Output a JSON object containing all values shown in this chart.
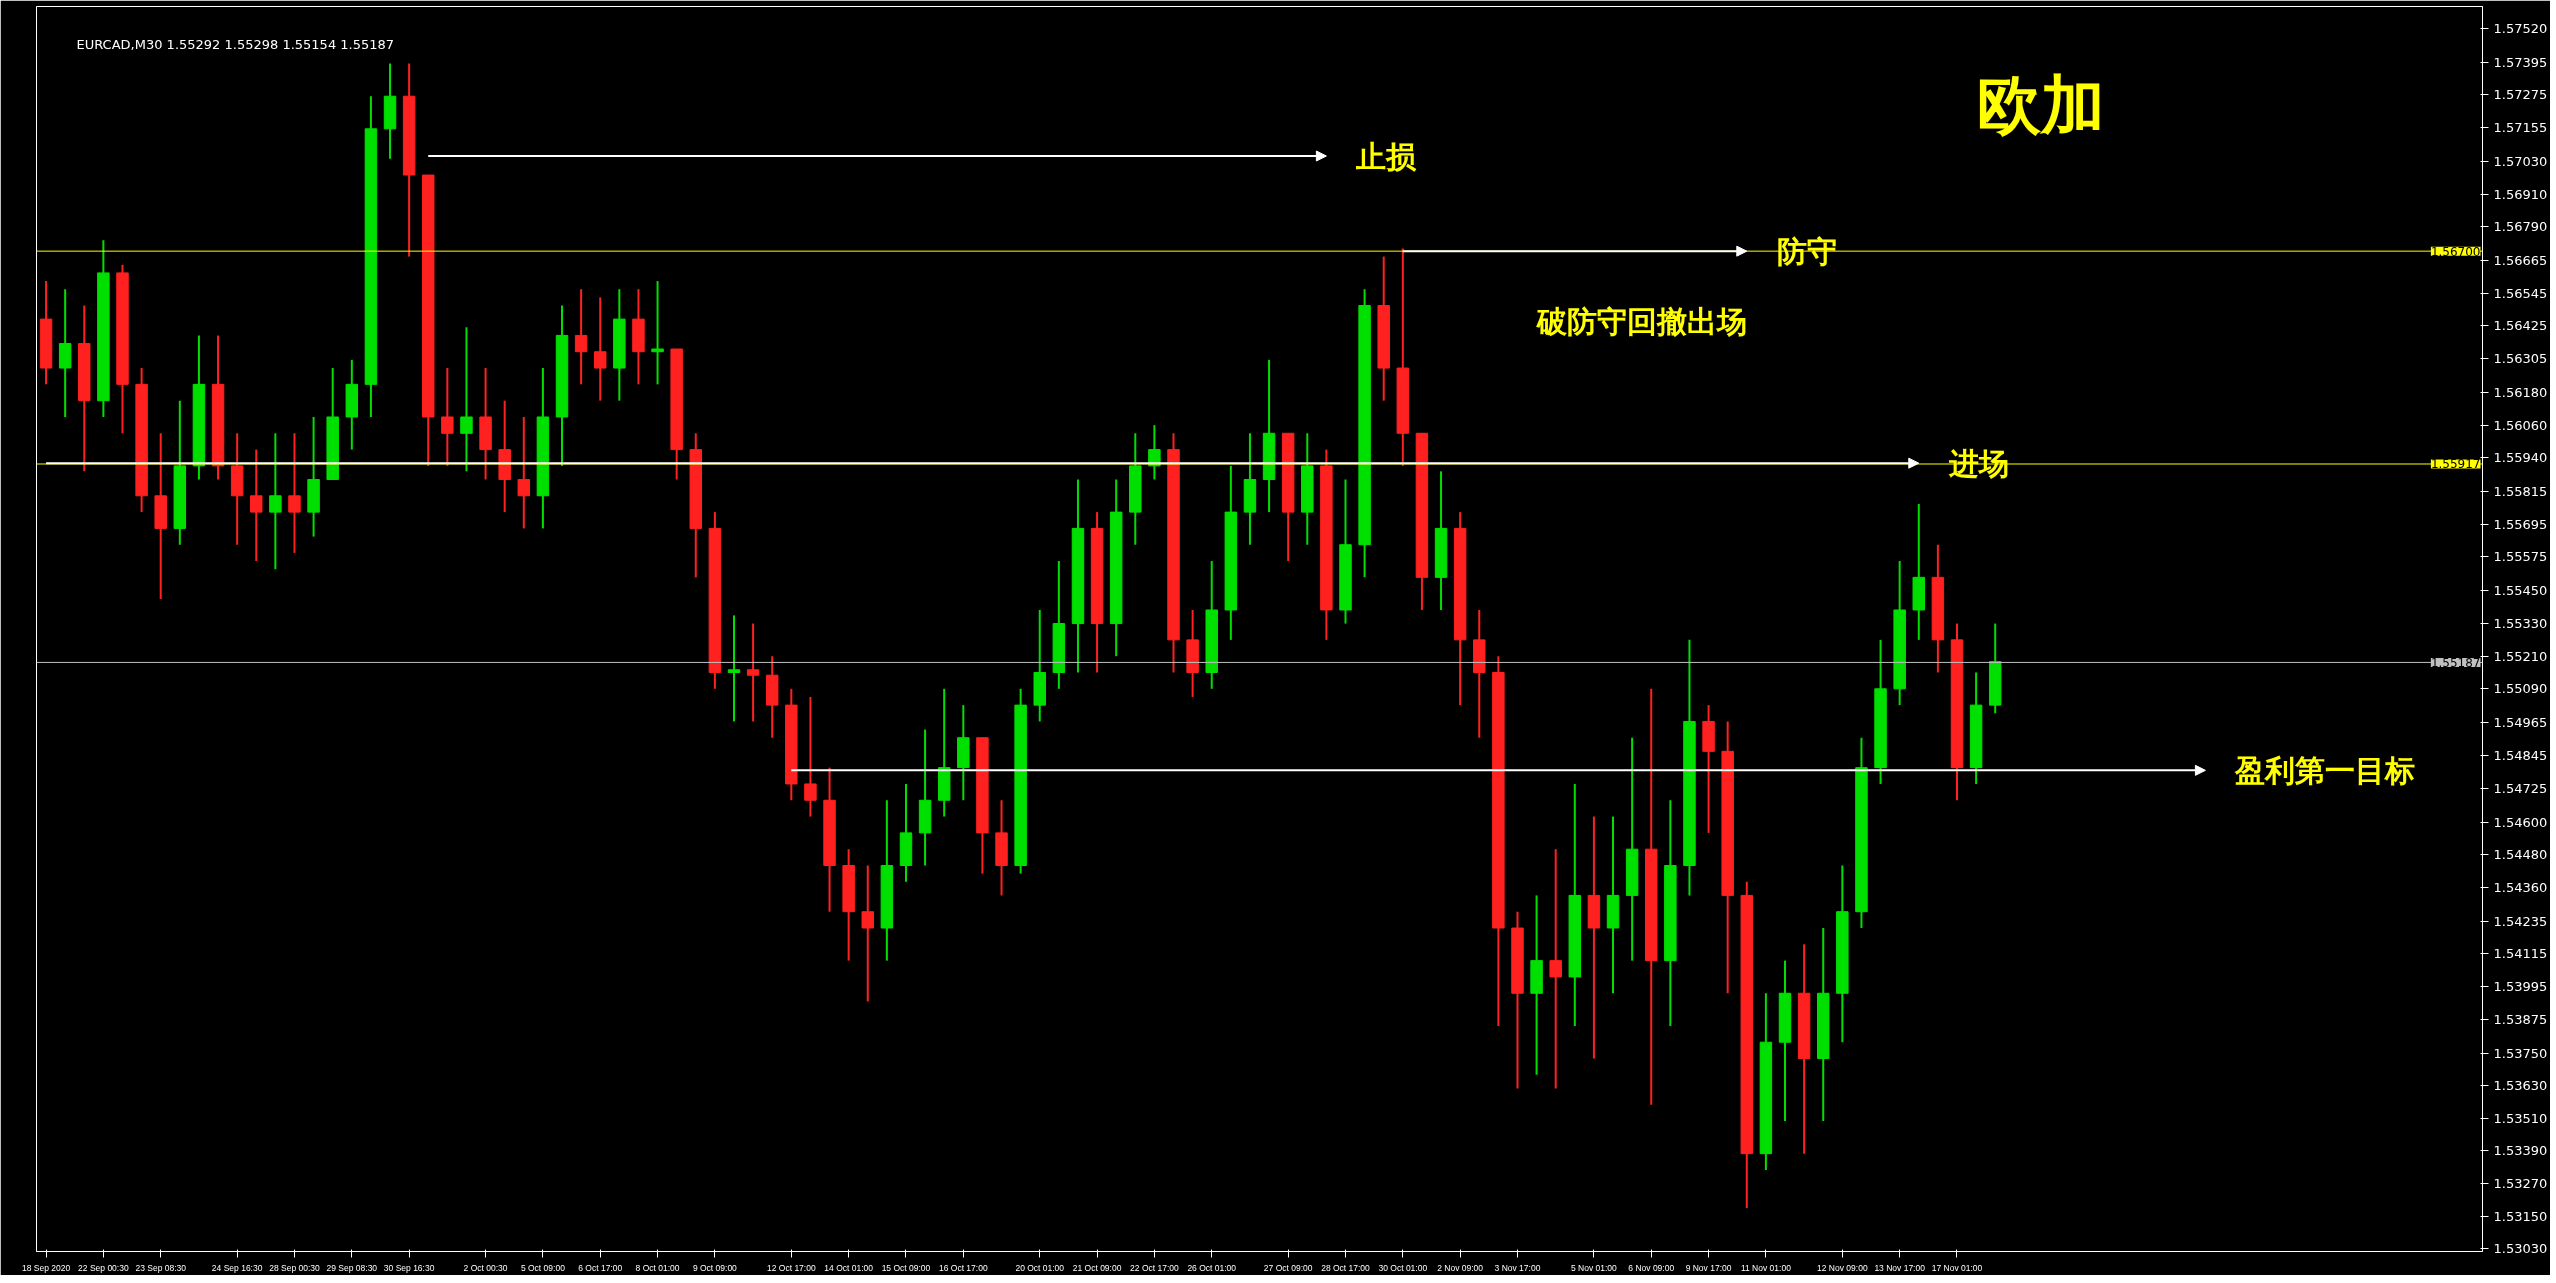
{
  "chart_data": {
    "type": "candlestick",
    "title": "欧加",
    "subtitle": "EURCAD,M30  1.55292 1.55298 1.55154 1.55187",
    "categories": [
      "18 Sep 2020",
      null,
      null,
      "22 Sep 00:30",
      null,
      null,
      "23 Sep 08:30",
      null,
      null,
      null,
      "24 Sep 16:30",
      null,
      null,
      "28 Sep 00:30",
      null,
      null,
      "29 Sep 08:30",
      null,
      null,
      "30 Sep 16:30",
      null,
      null,
      null,
      "2 Oct 00:30",
      null,
      null,
      "5 Oct 09:00",
      null,
      null,
      "6 Oct 17:00",
      null,
      null,
      "8 Oct 01:00",
      null,
      null,
      "9 Oct 09:00",
      null,
      null,
      null,
      "12 Oct 17:00",
      null,
      null,
      "14 Oct 01:00",
      null,
      null,
      "15 Oct 09:00",
      null,
      null,
      "16 Oct 17:00",
      null,
      null,
      null,
      "20 Oct 01:00",
      null,
      null,
      "21 Oct 09:00",
      null,
      null,
      "22 Oct 17:00",
      null,
      null,
      "26 Oct 01:00",
      null,
      null,
      null,
      "27 Oct 09:00",
      null,
      null,
      "28 Oct 17:00",
      null,
      null,
      "30 Oct 01:00",
      null,
      null,
      "2 Nov 09:00",
      null,
      null,
      "3 Nov 17:00",
      null,
      null,
      null,
      "5 Nov 01:00",
      null,
      null,
      "6 Nov 09:00",
      null,
      null,
      "9 Nov 17:00",
      null,
      null,
      "11 Nov 01:00",
      null,
      null,
      null,
      "12 Nov 09:00",
      null,
      null,
      "13 Nov 17:00",
      null,
      null,
      "17 Nov 01:00",
      null,
      null,
      null,
      null,
      null,
      null,
      null,
      null,
      null,
      null,
      null,
      null,
      null,
      null,
      null,
      null,
      null,
      null,
      null,
      null,
      null,
      null,
      null,
      null,
      null,
      null,
      null
    ],
    "ohlc": [
      [
        1.5645,
        1.5659,
        1.5621,
        1.5627
      ],
      [
        1.5627,
        1.5656,
        1.5609,
        1.5636
      ],
      [
        1.5636,
        1.565,
        1.5589,
        1.5615
      ],
      [
        1.5615,
        1.5674,
        1.5609,
        1.5662
      ],
      [
        1.5662,
        1.5665,
        1.5603,
        1.5621
      ],
      [
        1.5621,
        1.5627,
        1.5574,
        1.558
      ],
      [
        1.558,
        1.5603,
        1.5542,
        1.5568
      ],
      [
        1.5568,
        1.5615,
        1.5562,
        1.5591
      ],
      [
        1.5591,
        1.5639,
        1.5586,
        1.5621
      ],
      [
        1.5621,
        1.5639,
        1.5586,
        1.5591
      ],
      [
        1.5591,
        1.5603,
        1.5562,
        1.558
      ],
      [
        1.558,
        1.5597,
        1.5556,
        1.5574
      ],
      [
        1.5574,
        1.5603,
        1.5553,
        1.558
      ],
      [
        1.558,
        1.5603,
        1.5559,
        1.5574
      ],
      [
        1.5574,
        1.5609,
        1.5565,
        1.5586
      ],
      [
        1.5586,
        1.5627,
        1.5586,
        1.5609
      ],
      [
        1.5609,
        1.563,
        1.5597,
        1.5621
      ],
      [
        1.5621,
        1.5727,
        1.5609,
        1.5715
      ],
      [
        1.5715,
        1.5739,
        1.5704,
        1.5727
      ],
      [
        1.5727,
        1.5739,
        1.5668,
        1.5698
      ],
      [
        1.5698,
        1.5698,
        1.5591,
        1.5609
      ],
      [
        1.5609,
        1.5627,
        1.5591,
        1.5603
      ],
      [
        1.5603,
        1.5642,
        1.5589,
        1.5609
      ],
      [
        1.5609,
        1.5627,
        1.5586,
        1.5597
      ],
      [
        1.5597,
        1.5615,
        1.5574,
        1.5586
      ],
      [
        1.5586,
        1.5609,
        1.5568,
        1.558
      ],
      [
        1.558,
        1.5627,
        1.5568,
        1.5609
      ],
      [
        1.5609,
        1.565,
        1.5591,
        1.5639
      ],
      [
        1.5639,
        1.5656,
        1.5621,
        1.5633
      ],
      [
        1.5633,
        1.5653,
        1.5615,
        1.5627
      ],
      [
        1.5627,
        1.5656,
        1.5615,
        1.5645
      ],
      [
        1.5645,
        1.5656,
        1.5621,
        1.5633
      ],
      [
        1.5633,
        1.5659,
        1.5621,
        1.5634
      ],
      [
        1.5634,
        1.5634,
        1.5586,
        1.5597
      ],
      [
        1.5597,
        1.5603,
        1.555,
        1.5568
      ],
      [
        1.5568,
        1.5574,
        1.5509,
        1.5515
      ],
      [
        1.5515,
        1.5536,
        1.5497,
        1.5516
      ],
      [
        1.5516,
        1.5533,
        1.5497,
        1.5514
      ],
      [
        1.5514,
        1.5521,
        1.5491,
        1.5503
      ],
      [
        1.5503,
        1.5509,
        1.5468,
        1.5474
      ],
      [
        1.5474,
        1.5506,
        1.5462,
        1.5468
      ],
      [
        1.5468,
        1.548,
        1.5427,
        1.5444
      ],
      [
        1.5444,
        1.545,
        1.5409,
        1.5427
      ],
      [
        1.5427,
        1.5444,
        1.5394,
        1.5421
      ],
      [
        1.5421,
        1.5468,
        1.5409,
        1.5444
      ],
      [
        1.5444,
        1.5474,
        1.5438,
        1.5456
      ],
      [
        1.5456,
        1.5494,
        1.5444,
        1.5468
      ],
      [
        1.5468,
        1.5509,
        1.5462,
        1.548
      ],
      [
        1.548,
        1.5503,
        1.5468,
        1.5491
      ],
      [
        1.5491,
        1.5491,
        1.5441,
        1.5456
      ],
      [
        1.5456,
        1.5468,
        1.5433,
        1.5444
      ],
      [
        1.5444,
        1.5509,
        1.5441,
        1.5503
      ],
      [
        1.5503,
        1.5538,
        1.5497,
        1.5515
      ],
      [
        1.5515,
        1.5556,
        1.5509,
        1.5533
      ],
      [
        1.5533,
        1.5586,
        1.5515,
        1.5568
      ],
      [
        1.5568,
        1.5574,
        1.5515,
        1.5533
      ],
      [
        1.5533,
        1.5586,
        1.5521,
        1.5574
      ],
      [
        1.5574,
        1.5603,
        1.5562,
        1.5591
      ],
      [
        1.5591,
        1.5606,
        1.5586,
        1.5597
      ],
      [
        1.5597,
        1.5603,
        1.5515,
        1.5527
      ],
      [
        1.5527,
        1.5538,
        1.5506,
        1.5515
      ],
      [
        1.5515,
        1.5556,
        1.5509,
        1.5538
      ],
      [
        1.5538,
        1.5591,
        1.5527,
        1.5574
      ],
      [
        1.5574,
        1.5603,
        1.5562,
        1.5586
      ],
      [
        1.5586,
        1.563,
        1.5574,
        1.5603
      ],
      [
        1.5603,
        1.5603,
        1.5556,
        1.5574
      ],
      [
        1.5574,
        1.5603,
        1.5562,
        1.5591
      ],
      [
        1.5591,
        1.5597,
        1.5527,
        1.5538
      ],
      [
        1.5538,
        1.5586,
        1.5533,
        1.5562
      ],
      [
        1.5562,
        1.5656,
        1.555,
        1.565
      ],
      [
        1.565,
        1.5668,
        1.5615,
        1.5627
      ],
      [
        1.5627,
        1.5671,
        1.5591,
        1.5603
      ],
      [
        1.5603,
        1.5603,
        1.5538,
        1.555
      ],
      [
        1.555,
        1.5589,
        1.5538,
        1.5568
      ],
      [
        1.5568,
        1.5574,
        1.5503,
        1.5527
      ],
      [
        1.5527,
        1.5538,
        1.5491,
        1.5515
      ],
      [
        1.5515,
        1.5521,
        1.5385,
        1.5421
      ],
      [
        1.5421,
        1.5427,
        1.5362,
        1.5397
      ],
      [
        1.5397,
        1.5433,
        1.5367,
        1.5409
      ],
      [
        1.5409,
        1.545,
        1.5362,
        1.5403
      ],
      [
        1.5403,
        1.5474,
        1.5385,
        1.5433
      ],
      [
        1.5433,
        1.5462,
        1.5373,
        1.5421
      ],
      [
        1.5421,
        1.5462,
        1.5397,
        1.5433
      ],
      [
        1.5433,
        1.5491,
        1.5409,
        1.545
      ],
      [
        1.545,
        1.5509,
        1.5356,
        1.5409
      ],
      [
        1.5409,
        1.5468,
        1.5385,
        1.5444
      ],
      [
        1.5444,
        1.5527,
        1.5433,
        1.5497
      ],
      [
        1.5497,
        1.5503,
        1.5456,
        1.5486
      ],
      [
        1.5486,
        1.5497,
        1.5397,
        1.5433
      ],
      [
        1.5433,
        1.5438,
        1.5318,
        1.5338
      ],
      [
        1.5338,
        1.5397,
        1.5332,
        1.5379
      ],
      [
        1.5379,
        1.5409,
        1.535,
        1.5397
      ],
      [
        1.5397,
        1.5415,
        1.5338,
        1.5373
      ],
      [
        1.5373,
        1.5421,
        1.535,
        1.5397
      ],
      [
        1.5397,
        1.5444,
        1.5379,
        1.5427
      ],
      [
        1.5427,
        1.5491,
        1.5421,
        1.548
      ],
      [
        1.548,
        1.5527,
        1.5474,
        1.5509
      ],
      [
        1.5509,
        1.5556,
        1.5503,
        1.5538
      ],
      [
        1.5538,
        1.5577,
        1.5527,
        1.555
      ],
      [
        1.555,
        1.5562,
        1.5515,
        1.5527
      ],
      [
        1.5527,
        1.5533,
        1.5468,
        1.548
      ],
      [
        1.548,
        1.5515,
        1.5474,
        1.5503
      ],
      [
        1.5503,
        1.5533,
        1.55,
        1.5519
      ],
      null,
      null,
      null,
      null,
      null,
      null,
      null,
      null,
      null,
      null,
      null,
      null,
      null,
      null,
      null,
      null,
      null,
      null,
      null,
      null,
      null,
      null,
      null,
      null,
      null
    ],
    "series": [
      {
        "type": "line",
        "name": "止损",
        "color": "#ffffff",
        "values": [
          null,
          null,
          null,
          null,
          null,
          null,
          null,
          null,
          null,
          null,
          null,
          null,
          null,
          null,
          null,
          null,
          null,
          null,
          null,
          null,
          1.5705,
          1.5705,
          1.5705,
          1.5705,
          1.5705,
          1.5705,
          1.5705,
          1.5705,
          1.5705,
          1.5705,
          1.5705,
          1.5705,
          1.5705,
          1.5705,
          1.5705,
          1.5705,
          1.5705,
          1.5705,
          1.5705,
          1.5705,
          1.5705,
          1.5705,
          1.5705,
          1.5705,
          1.5705,
          1.5705,
          1.5705,
          1.5705,
          1.5705,
          1.5705,
          1.5705,
          1.5705,
          1.5705,
          1.5705,
          1.5705,
          1.5705,
          1.5705,
          1.5705,
          1.5705,
          1.5705,
          1.5705,
          1.5705,
          1.5705,
          1.5705,
          1.5705,
          1.5705,
          1.5705,
          1.5705,
          null,
          null,
          null,
          null,
          null,
          null,
          null,
          null,
          null,
          null,
          null,
          null,
          null,
          null,
          null,
          null,
          null,
          null,
          null,
          null,
          null,
          null,
          null,
          null,
          null,
          null,
          null,
          null,
          null,
          null,
          null,
          null,
          null,
          null,
          null,
          null,
          null,
          null,
          null,
          null,
          null,
          null,
          null,
          null,
          null,
          null,
          null,
          null,
          null,
          null,
          null,
          null,
          null,
          null,
          null,
          null,
          null,
          null,
          null,
          null
        ]
      },
      {
        "type": "line",
        "name": "防守",
        "color": "#ffffff",
        "values": [
          null,
          null,
          null,
          null,
          null,
          null,
          null,
          null,
          null,
          null,
          null,
          null,
          null,
          null,
          null,
          null,
          null,
          null,
          null,
          null,
          null,
          null,
          null,
          null,
          null,
          null,
          null,
          null,
          null,
          null,
          null,
          null,
          null,
          null,
          null,
          null,
          null,
          null,
          null,
          null,
          null,
          null,
          null,
          null,
          null,
          null,
          null,
          null,
          null,
          null,
          null,
          null,
          null,
          null,
          null,
          null,
          null,
          null,
          null,
          null,
          null,
          null,
          null,
          null,
          null,
          null,
          null,
          null,
          null,
          null,
          null,
          1.567,
          1.567,
          1.567,
          1.567,
          1.567,
          1.567,
          1.567,
          1.567,
          1.567,
          1.567,
          1.567,
          1.567,
          1.567,
          1.567,
          1.567,
          1.567,
          1.567,
          1.567,
          1.567,
          null,
          null,
          null,
          null,
          null,
          null,
          null,
          null,
          null,
          null,
          null,
          null,
          null,
          null,
          null,
          null,
          null,
          null,
          null,
          null,
          null,
          null,
          null,
          null,
          null,
          null,
          null,
          null,
          null,
          null,
          null,
          null,
          null,
          null,
          null,
          null,
          null,
          null
        ]
      },
      {
        "type": "line",
        "name": "进场",
        "color": "#ffffff",
        "values": [
          1.5592,
          1.5592,
          1.5592,
          1.5592,
          1.5592,
          1.5592,
          1.5592,
          1.5592,
          1.5592,
          1.5592,
          1.5592,
          1.5592,
          1.5592,
          1.5592,
          1.5592,
          1.5592,
          1.5592,
          1.5592,
          1.5592,
          1.5592,
          1.5592,
          1.5592,
          1.5592,
          1.5592,
          1.5592,
          1.5592,
          1.5592,
          1.5592,
          1.5592,
          1.5592,
          1.5592,
          1.5592,
          1.5592,
          1.5592,
          1.5592,
          1.5592,
          1.5592,
          1.5592,
          1.5592,
          1.5592,
          1.5592,
          1.5592,
          1.5592,
          1.5592,
          1.5592,
          1.5592,
          1.5592,
          1.5592,
          1.5592,
          1.5592,
          1.5592,
          1.5592,
          1.5592,
          1.5592,
          1.5592,
          1.5592,
          1.5592,
          1.5592,
          1.5592,
          1.5592,
          1.5592,
          1.5592,
          1.5592,
          1.5592,
          1.5592,
          1.5592,
          1.5592,
          1.5592,
          1.5592,
          1.5592,
          1.5592,
          1.5592,
          1.5592,
          1.5592,
          1.5592,
          1.5592,
          1.5592,
          1.5592,
          1.5592,
          1.5592,
          1.5592,
          1.5592,
          1.5592,
          1.5592,
          1.5592,
          1.5592,
          1.5592,
          1.5592,
          1.5592,
          1.5592,
          1.5592,
          1.5592,
          1.5592,
          1.5592,
          1.5592,
          1.5592,
          1.5592,
          1.5592,
          1.5592,
          null,
          null,
          null,
          null,
          null,
          null,
          null,
          null,
          null,
          null,
          null,
          null,
          null,
          null,
          null,
          null,
          null,
          null,
          null,
          null,
          null,
          null,
          null,
          null,
          null,
          null,
          null,
          null,
          null
        ]
      },
      {
        "type": "line",
        "name": "盈利第一目标",
        "color": "#ffffff",
        "values": [
          null,
          null,
          null,
          null,
          null,
          null,
          null,
          null,
          null,
          null,
          null,
          null,
          null,
          null,
          null,
          null,
          null,
          null,
          null,
          null,
          null,
          null,
          null,
          null,
          null,
          null,
          null,
          null,
          null,
          null,
          null,
          null,
          null,
          null,
          null,
          null,
          null,
          null,
          null,
          1.5479,
          1.5479,
          1.5479,
          1.5479,
          1.5479,
          1.5479,
          1.5479,
          1.5479,
          1.5479,
          1.5479,
          1.5479,
          1.5479,
          1.5479,
          1.5479,
          1.5479,
          1.5479,
          1.5479,
          1.5479,
          1.5479,
          1.5479,
          1.5479,
          1.5479,
          1.5479,
          1.5479,
          1.5479,
          1.5479,
          1.5479,
          1.5479,
          1.5479,
          1.5479,
          1.5479,
          1.5479,
          1.5479,
          1.5479,
          1.5479,
          1.5479,
          1.5479,
          1.5479,
          1.5479,
          1.5479,
          1.5479,
          1.5479,
          1.5479,
          1.5479,
          1.5479,
          1.5479,
          1.5479,
          1.5479,
          1.5479,
          1.5479,
          1.5479,
          1.5479,
          1.5479,
          1.5479,
          1.5479,
          1.5479,
          1.5479,
          1.5479,
          1.5479,
          1.5479,
          1.5479,
          1.5479,
          1.5479,
          1.5479,
          1.5479,
          1.5479,
          1.5479,
          1.5479,
          1.5479,
          1.5479,
          1.5479,
          1.5479,
          1.5479,
          1.5479,
          1.5479,
          null,
          null,
          null,
          null,
          null,
          null,
          null,
          null,
          null,
          null,
          null,
          null,
          null,
          null
        ]
      }
    ],
    "annotations": [
      "破防守回撤出场"
    ],
    "ref_lines": [
      {
        "axis": "y",
        "value": 1.567,
        "label": "1.56700",
        "color": "#ffff00"
      },
      {
        "axis": "y",
        "value": 1.55917,
        "label": "1.55917",
        "color": "#ffff00"
      },
      {
        "axis": "y",
        "value": 1.55187,
        "label": "1.55187",
        "color": "#c0c0c0"
      }
    ],
    "ylim": [
      1.5302,
      1.576
    ],
    "yticks": [
      {
        "value": 1.5752,
        "label": "1.57520"
      },
      {
        "value": 1.57395,
        "label": "1.57395"
      },
      {
        "value": 1.57275,
        "label": "1.57275"
      },
      {
        "value": 1.57155,
        "label": "1.57155"
      },
      {
        "value": 1.5703,
        "label": "1.57030"
      },
      {
        "value": 1.5691,
        "label": "1.56910"
      },
      {
        "value": 1.5679,
        "label": "1.56790"
      },
      {
        "value": 1.56665,
        "label": "1.56665"
      },
      {
        "value": 1.56545,
        "label": "1.56545"
      },
      {
        "value": 1.56425,
        "label": "1.56425"
      },
      {
        "value": 1.56305,
        "label": "1.56305"
      },
      {
        "value": 1.5618,
        "label": "1.56180"
      },
      {
        "value": 1.5606,
        "label": "1.56060"
      },
      {
        "value": 1.5594,
        "label": "1.55940"
      },
      {
        "value": 1.55815,
        "label": "1.55815"
      },
      {
        "value": 1.55695,
        "label": "1.55695"
      },
      {
        "value": 1.55575,
        "label": "1.55575"
      },
      {
        "value": 1.5545,
        "label": "1.55450"
      },
      {
        "value": 1.5533,
        "label": "1.55330"
      },
      {
        "value": 1.5521,
        "label": "1.55210"
      },
      {
        "value": 1.5509,
        "label": "1.55090"
      },
      {
        "value": 1.54965,
        "label": "1.54965"
      },
      {
        "value": 1.54845,
        "label": "1.54845"
      },
      {
        "value": 1.54725,
        "label": "1.54725"
      },
      {
        "value": 1.546,
        "label": "1.54600"
      },
      {
        "value": 1.5448,
        "label": "1.54480"
      },
      {
        "value": 1.5436,
        "label": "1.54360"
      },
      {
        "value": 1.54235,
        "label": "1.54235"
      },
      {
        "value": 1.54115,
        "label": "1.54115"
      },
      {
        "value": 1.53995,
        "label": "1.53995"
      },
      {
        "value": 1.53875,
        "label": "1.53875"
      },
      {
        "value": 1.5375,
        "label": "1.53750"
      },
      {
        "value": 1.5363,
        "label": "1.53630"
      },
      {
        "value": 1.5351,
        "label": "1.53510"
      },
      {
        "value": 1.5339,
        "label": "1.53390"
      },
      {
        "value": 1.5327,
        "label": "1.53270"
      },
      {
        "value": 1.5315,
        "label": "1.53150"
      },
      {
        "value": 1.5303,
        "label": "1.53030"
      }
    ],
    "grid": false
  }
}
